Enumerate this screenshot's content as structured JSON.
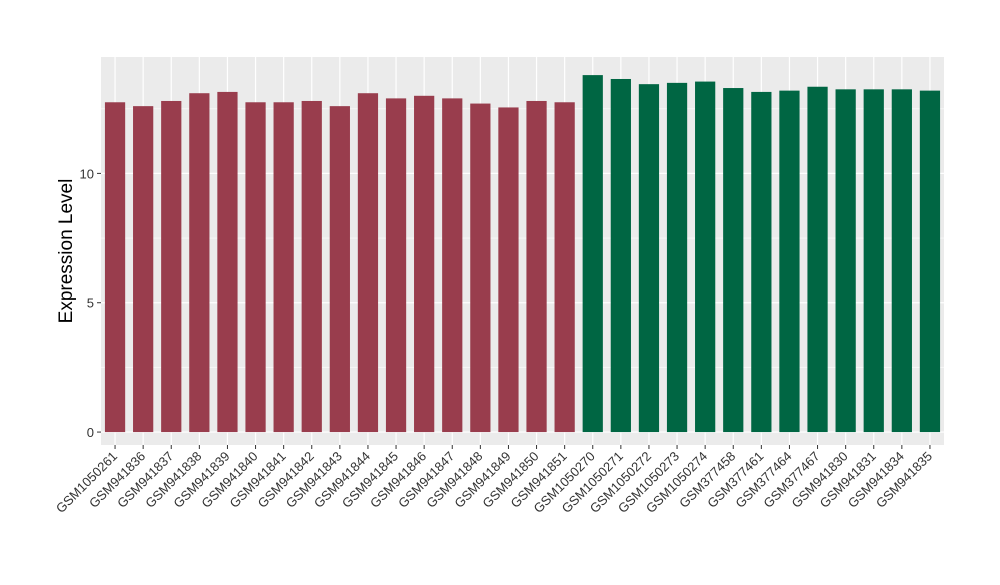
{
  "chart_data": {
    "type": "bar",
    "title": "",
    "xlabel": "",
    "ylabel": "Expression Level",
    "ylim": [
      -0.5,
      14.5
    ],
    "yticks": [
      0,
      5,
      10
    ],
    "grid": true,
    "legend": "none",
    "panel_background": "#ebebeb",
    "categories": [
      "GSM1050261",
      "GSM941836",
      "GSM941837",
      "GSM941838",
      "GSM941839",
      "GSM941840",
      "GSM941841",
      "GSM941842",
      "GSM941843",
      "GSM941844",
      "GSM941845",
      "GSM941846",
      "GSM941847",
      "GSM941848",
      "GSM941849",
      "GSM941850",
      "GSM941851",
      "GSM1050270",
      "GSM1050271",
      "GSM1050272",
      "GSM1050273",
      "GSM1050274",
      "GSM377458",
      "GSM377461",
      "GSM377464",
      "GSM377467",
      "GSM941830",
      "GSM941831",
      "GSM941834",
      "GSM941835"
    ],
    "values": [
      12.75,
      12.6,
      12.8,
      13.1,
      13.15,
      12.75,
      12.75,
      12.8,
      12.6,
      13.1,
      12.9,
      13.0,
      12.9,
      12.7,
      12.55,
      12.8,
      12.75,
      13.8,
      13.65,
      13.45,
      13.5,
      13.55,
      13.3,
      13.15,
      13.2,
      13.35,
      13.25,
      13.25,
      13.25,
      13.2
    ],
    "groups": [
      "A",
      "A",
      "A",
      "A",
      "A",
      "A",
      "A",
      "A",
      "A",
      "A",
      "A",
      "A",
      "A",
      "A",
      "A",
      "A",
      "A",
      "B",
      "B",
      "B",
      "B",
      "B",
      "B",
      "B",
      "B",
      "B",
      "B",
      "B",
      "B",
      "B"
    ],
    "colors": {
      "A": "#993d4d",
      "B": "#006643"
    }
  }
}
